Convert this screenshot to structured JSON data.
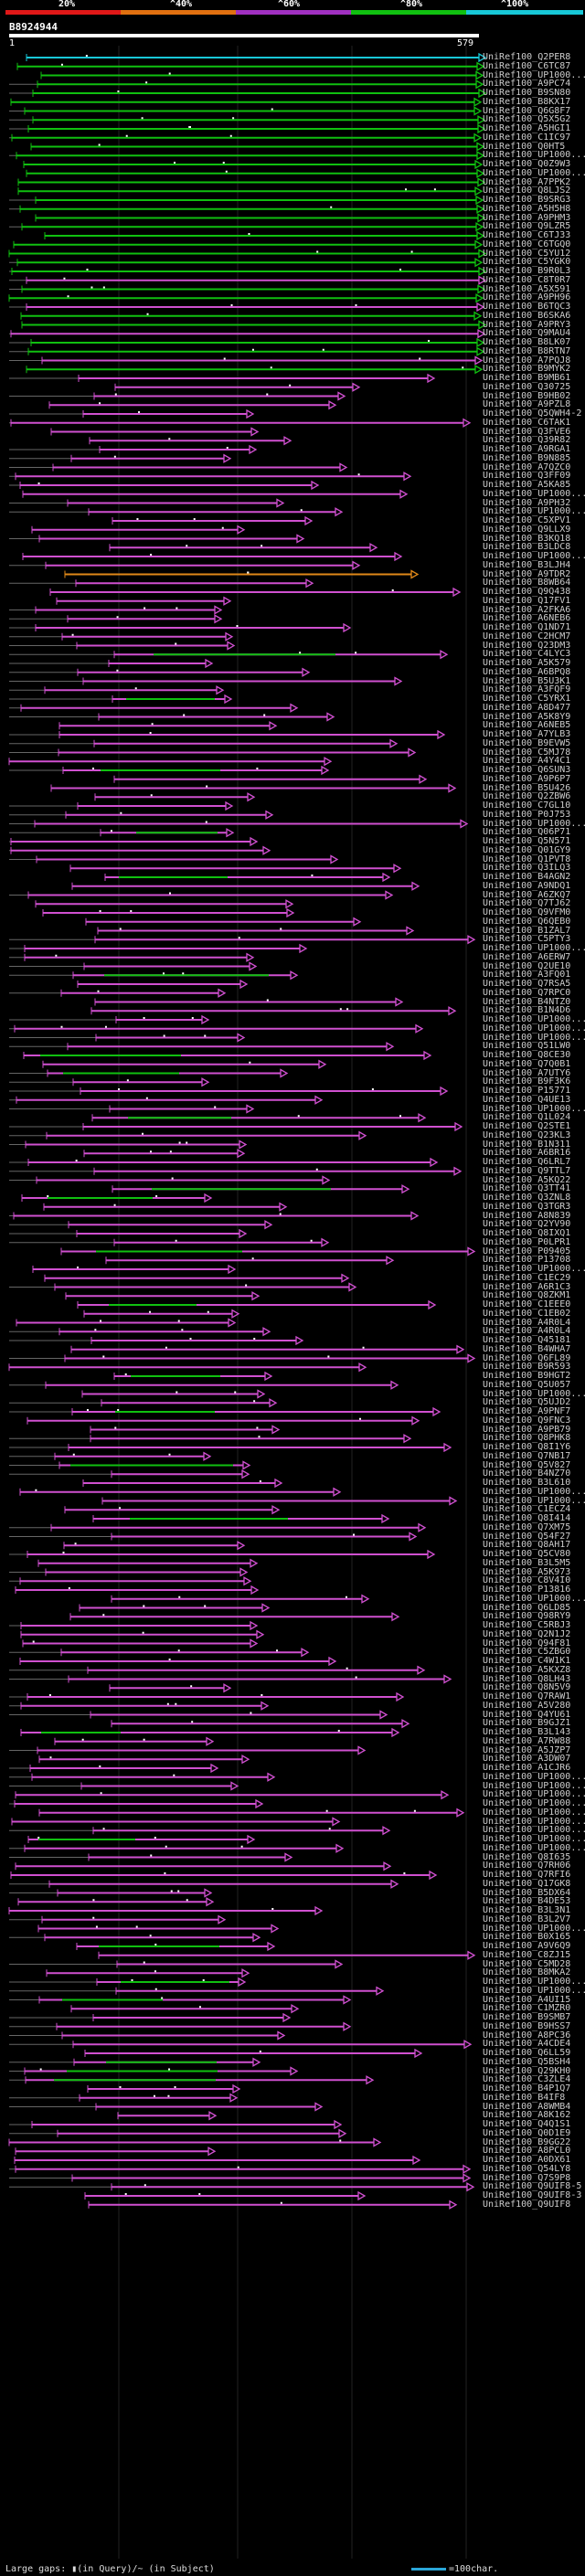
{
  "legend": {
    "labels": [
      "20%",
      "^40%",
      "^60%",
      "^80%",
      "^100%"
    ],
    "colors": [
      "#e01818",
      "#e07010",
      "#a030c0",
      "#10c010",
      "#18c8d8"
    ]
  },
  "query": {
    "id": "B8924944",
    "start": "1",
    "end": "579"
  },
  "colors": {
    "cyan": "#18c8d8",
    "green": "#10c010",
    "magenta": "#d050d0",
    "orange": "#e08818",
    "gray": "#666666"
  },
  "hits": [
    {
      "label": "UniRef100_Q2PER8"
    },
    {
      "label": "UniRef100_C6TC87"
    },
    {
      "label": "UniRef100_UP1000..."
    },
    {
      "label": "UniRef100_A9PC74"
    },
    {
      "label": "UniRef100_B9SN80"
    },
    {
      "label": "UniRef100_B8KX17"
    },
    {
      "label": "UniRef100_Q6G8F7"
    },
    {
      "label": "UniRef100_Q5X5G2"
    },
    {
      "label": "UniRef100_A5HGI1"
    },
    {
      "label": "UniRef100_C1IC97"
    },
    {
      "label": "UniRef100_Q0HT5"
    },
    {
      "label": "UniRef100_UP1000..."
    },
    {
      "label": "UniRef100_Q0Z9W3"
    },
    {
      "label": "UniRef100_UP1000..."
    },
    {
      "label": "UniRef100_A7PPK2"
    },
    {
      "label": "UniRef100_Q8LJS2"
    },
    {
      "label": "UniRef100_B9SRG3"
    },
    {
      "label": "UniRef100_A5H5H8"
    },
    {
      "label": "UniRef100_A9PHM3"
    },
    {
      "label": "UniRef100_Q9LZR5"
    },
    {
      "label": "UniRef100_C6TJ33"
    },
    {
      "label": "UniRef100_C6TGQ0"
    },
    {
      "label": "UniRef100_C5YU12"
    },
    {
      "label": "UniRef100_C5YGK0"
    },
    {
      "label": "UniRef100_B9R0L3"
    },
    {
      "label": "UniRef100_C8T0R7"
    },
    {
      "label": "UniRef100_A5X591"
    },
    {
      "label": "UniRef100_A9PH96"
    },
    {
      "label": "UniRef100_B6TQC3"
    },
    {
      "label": "UniRef100_B6SKA6"
    },
    {
      "label": "UniRef100_A9PRY3"
    },
    {
      "label": "UniRef100_Q9MAU4"
    },
    {
      "label": "UniRef100_B8LK07"
    },
    {
      "label": "UniRef100_B8RTN7"
    },
    {
      "label": "UniRef100_A7PQJ8"
    },
    {
      "label": "UniRef100_B9MYK2"
    },
    {
      "label": "UniRef100_B9MB61"
    },
    {
      "label": "UniRef100_Q30725"
    },
    {
      "label": "UniRef100_B9HB02"
    },
    {
      "label": "UniRef100_A9PZL8"
    },
    {
      "label": "UniRef100_Q5QWH4-2"
    },
    {
      "label": "UniRef100_C6TAK1"
    },
    {
      "label": "UniRef100_Q3FVE6"
    },
    {
      "label": "UniRef100_Q39R82"
    },
    {
      "label": "UniRef100_A9RGA1"
    },
    {
      "label": "UniRef100_B9N885"
    },
    {
      "label": "UniRef100_A7QZC0"
    },
    {
      "label": "UniRef100_Q3FF09"
    },
    {
      "label": "UniRef100_A5KA85"
    },
    {
      "label": "UniRef100_UP1000..."
    },
    {
      "label": "UniRef100_A9PH32"
    },
    {
      "label": "UniRef100_UP1000..."
    },
    {
      "label": "UniRef100_C5XPV1"
    },
    {
      "label": "UniRef100_Q9LLX9"
    },
    {
      "label": "UniRef100_B3KQ18"
    },
    {
      "label": "UniRef100_B3LDC8"
    },
    {
      "label": "UniRef100_UP1000..."
    },
    {
      "label": "UniRef100_B3LJH4"
    },
    {
      "label": "UniRef100_A9TDR2"
    },
    {
      "label": "UniRef100_B8WB64"
    },
    {
      "label": "UniRef100_Q9Q438"
    },
    {
      "label": "UniRef100_Q17FV1"
    },
    {
      "label": "UniRef100_A2FKA6"
    },
    {
      "label": "UniRef100_A6NEB6"
    },
    {
      "label": "UniRef100_Q1ND71"
    },
    {
      "label": "UniRef100_C2HCM7"
    },
    {
      "label": "UniRef100_Q23DM3"
    },
    {
      "label": "UniRef100_C4LYC3"
    },
    {
      "label": "UniRef100_A5K579"
    },
    {
      "label": "UniRef100_A6BPQ8"
    },
    {
      "label": "UniRef100_B5U3K1"
    },
    {
      "label": "UniRef100_A3FQF9"
    },
    {
      "label": "UniRef100_C5YRX1"
    },
    {
      "label": "UniRef100_A8D477"
    },
    {
      "label": "UniRef100_A5K8Y9"
    },
    {
      "label": "UniRef100_A6NEB5"
    },
    {
      "label": "UniRef100_A7YLB3"
    },
    {
      "label": "UniRef100_B9EVW5"
    },
    {
      "label": "UniRef100_C5MJ78"
    },
    {
      "label": "UniRef100_A4Y4C1"
    },
    {
      "label": "UniRef100_Q6SUN3"
    },
    {
      "label": "UniRef100_A9P6P7"
    },
    {
      "label": "UniRef100_B5U426"
    },
    {
      "label": "UniRef100_Q2ZBW6"
    },
    {
      "label": "UniRef100_C7GL10"
    },
    {
      "label": "UniRef100_P0J753"
    },
    {
      "label": "UniRef100_UP1000..."
    },
    {
      "label": "UniRef100_Q06P71"
    },
    {
      "label": "UniRef100_Q5N571"
    },
    {
      "label": "UniRef100_Q01GY9"
    },
    {
      "label": "UniRef100_Q1PVT8"
    },
    {
      "label": "UniRef100_Q3ILQ3"
    },
    {
      "label": "UniRef100_B4AGN2"
    },
    {
      "label": "UniRef100_A9NDQ1"
    },
    {
      "label": "UniRef100_A6ZKQ7"
    },
    {
      "label": "UniRef100_Q7TJ62"
    },
    {
      "label": "UniRef100_Q9VFM0"
    },
    {
      "label": "UniRef100_Q6QEB0"
    },
    {
      "label": "UniRef100_B1ZAL7"
    },
    {
      "label": "UniRef100_C5PTY3"
    },
    {
      "label": "UniRef100_UP1000..."
    },
    {
      "label": "UniRef100_A6ERW7"
    },
    {
      "label": "UniRef100_Q2UE10"
    },
    {
      "label": "UniRef100_A3FQ01"
    },
    {
      "label": "UniRef100_Q7RSA5"
    },
    {
      "label": "UniRef100_Q7RPC0"
    },
    {
      "label": "UniRef100_B4NTZ0"
    },
    {
      "label": "UniRef100_B1N4D6"
    },
    {
      "label": "UniRef100_UP1000..."
    },
    {
      "label": "UniRef100_UP1000..."
    },
    {
      "label": "UniRef100_UP1000..."
    },
    {
      "label": "UniRef100_Q51LW0"
    },
    {
      "label": "UniRef100_Q8CE30"
    },
    {
      "label": "UniRef100_Q7Q0B1"
    },
    {
      "label": "UniRef100_A7UTY6"
    },
    {
      "label": "UniRef100_B9F3K6"
    },
    {
      "label": "UniRef100_P15771"
    },
    {
      "label": "UniRef100_Q4UE13"
    },
    {
      "label": "UniRef100_UP1000..."
    },
    {
      "label": "UniRef100_Q1L024"
    },
    {
      "label": "UniRef100_Q2STE1"
    },
    {
      "label": "UniRef100_Q23KL3"
    },
    {
      "label": "UniRef100_B1N311"
    },
    {
      "label": "UniRef100_A6BR16"
    },
    {
      "label": "UniRef100_Q6LRL7"
    },
    {
      "label": "UniRef100_Q9TTL7"
    },
    {
      "label": "UniRef100_A5KQ22"
    },
    {
      "label": "UniRef100_Q3TT41"
    },
    {
      "label": "UniRef100_Q3ZNL8"
    },
    {
      "label": "UniRef100_Q3TGR3"
    },
    {
      "label": "UniRef100_A8N839"
    },
    {
      "label": "UniRef100_Q2YV90"
    },
    {
      "label": "UniRef100_Q8IXQ1"
    },
    {
      "label": "UniRef100_P0LPR1"
    },
    {
      "label": "UniRef100_P09405"
    },
    {
      "label": "UniRef100_P13708"
    },
    {
      "label": "UniRef100_UP1000..."
    },
    {
      "label": "UniRef100_C1EC29"
    },
    {
      "label": "UniRef100_A6R1C3"
    },
    {
      "label": "UniRef100_Q8ZKM1"
    },
    {
      "label": "UniRef100_C1EEE0"
    },
    {
      "label": "UniRef100_C1EB02"
    },
    {
      "label": "UniRef100_A4R0L4"
    },
    {
      "label": "UniRef100_A4R0L4"
    },
    {
      "label": "UniRef100_Q45181"
    },
    {
      "label": "UniRef100_B4WHA7"
    },
    {
      "label": "UniRef100_Q6FL89"
    },
    {
      "label": "UniRef100_B9R593"
    },
    {
      "label": "UniRef100_B9HGT2"
    },
    {
      "label": "UniRef100_Q5U057"
    },
    {
      "label": "UniRef100_UP1000..."
    },
    {
      "label": "UniRef100_Q5UJD2"
    },
    {
      "label": "UniRef100_A9PNF7"
    },
    {
      "label": "UniRef100_Q9FNC3"
    },
    {
      "label": "UniRef100_A9PB79"
    },
    {
      "label": "UniRef100_Q8PHK8"
    },
    {
      "label": "UniRef100_Q8I1Y6"
    },
    {
      "label": "UniRef100_Q7NB17"
    },
    {
      "label": "UniRef100_Q5V827"
    },
    {
      "label": "UniRef100_B4NZ70"
    },
    {
      "label": "UniRef100_B3L610"
    },
    {
      "label": "UniRef100_UP1000..."
    },
    {
      "label": "UniRef100_UP1000..."
    },
    {
      "label": "UniRef100_C1ECZ4"
    },
    {
      "label": "UniRef100_Q8I414"
    },
    {
      "label": "UniRef100_Q7XM75"
    },
    {
      "label": "UniRef100_Q54F27"
    },
    {
      "label": "UniRef100_Q8AH17"
    },
    {
      "label": "UniRef100_Q5CV80"
    },
    {
      "label": "UniRef100_B3L5M5"
    },
    {
      "label": "UniRef100_A5K973"
    },
    {
      "label": "UniRef100_C8V4I0"
    },
    {
      "label": "UniRef100_P13816"
    },
    {
      "label": "UniRef100_UP1000..."
    },
    {
      "label": "UniRef100_Q6LD85"
    },
    {
      "label": "UniRef100_Q98RY9"
    },
    {
      "label": "UniRef100_C5RBJ3"
    },
    {
      "label": "UniRef100_Q2N1J2"
    },
    {
      "label": "UniRef100_Q94F81"
    },
    {
      "label": "UniRef100_C5ZBG0"
    },
    {
      "label": "UniRef100_C4W1K1"
    },
    {
      "label": "UniRef100_A5KXZ8"
    },
    {
      "label": "UniRef100_Q8LH43"
    },
    {
      "label": "UniRef100_Q8N5V9"
    },
    {
      "label": "UniRef100_Q7RAW1"
    },
    {
      "label": "UniRef100_A5V280"
    },
    {
      "label": "UniRef100_Q4YU61"
    },
    {
      "label": "UniRef100_B9GJZ1"
    },
    {
      "label": "UniRef100_B3L143"
    },
    {
      "label": "UniRef100_A7RW88"
    },
    {
      "label": "UniRef100_A5JZP7"
    },
    {
      "label": "UniRef100_A3DW07"
    },
    {
      "label": "UniRef100_A1CJR6"
    },
    {
      "label": "UniRef100_UP1000..."
    },
    {
      "label": "UniRef100_UP1000..."
    },
    {
      "label": "UniRef100_UP1000..."
    },
    {
      "label": "UniRef100_UP1000..."
    },
    {
      "label": "UniRef100_UP1000..."
    },
    {
      "label": "UniRef100_UP1000..."
    },
    {
      "label": "UniRef100_UP1000..."
    },
    {
      "label": "UniRef100_UP1000..."
    },
    {
      "label": "UniRef100_UP1000..."
    },
    {
      "label": "UniRef100_Q8I635"
    },
    {
      "label": "UniRef100_Q7RH06"
    },
    {
      "label": "UniRef100_Q7RFI6"
    },
    {
      "label": "UniRef100_Q17GK8"
    },
    {
      "label": "UniRef100_B5DX64"
    },
    {
      "label": "UniRef100_B4DE53"
    },
    {
      "label": "UniRef100_B3L3N1"
    },
    {
      "label": "UniRef100_B3L2V7"
    },
    {
      "label": "UniRef100_UP1000..."
    },
    {
      "label": "UniRef100_B0X165"
    },
    {
      "label": "UniRef100_A9V6Q9"
    },
    {
      "label": "UniRef100_C8ZJ15"
    },
    {
      "label": "UniRef100_C5MD28"
    },
    {
      "label": "UniRef100_B8MKA2"
    },
    {
      "label": "UniRef100_UP1000..."
    },
    {
      "label": "UniRef100_UP1000..."
    },
    {
      "label": "UniRef100_A4UI15"
    },
    {
      "label": "UniRef100_C1MZR0"
    },
    {
      "label": "UniRef100_B9SMB7"
    },
    {
      "label": "UniRef100_B9HSS7"
    },
    {
      "label": "UniRef100_A8PC36"
    },
    {
      "label": "UniRef100_A4CDE4"
    },
    {
      "label": "UniRef100_Q6LL59"
    },
    {
      "label": "UniRef100_Q5BSH4"
    },
    {
      "label": "UniRef100_Q29KH0"
    },
    {
      "label": "UniRef100_C3ZLE4"
    },
    {
      "label": "UniRef100_B4P1Q7"
    },
    {
      "label": "UniRef100_B4IF8"
    },
    {
      "label": "UniRef100_A8WMB4"
    },
    {
      "label": "UniRef100_A8K162"
    },
    {
      "label": "UniRef100_Q4Q1S1"
    },
    {
      "label": "UniRef100_Q0D1E9"
    },
    {
      "label": "UniRef100_B9GG22"
    },
    {
      "label": "UniRef100_A8PCL0"
    },
    {
      "label": "UniRef100_A0DX61"
    },
    {
      "label": "UniRef100_Q54LY8"
    },
    {
      "label": "UniRef100_Q7S9P8"
    },
    {
      "label": "UniRef100_Q9UIF8-5"
    },
    {
      "label": "UniRef100_Q9UIF8-3"
    },
    {
      "label": "UniRef100_Q9UIF8"
    }
  ],
  "footer": {
    "large_gaps": "Large gaps: ▮(in Query)/~ (in Subject)",
    "scale": "=100char."
  }
}
